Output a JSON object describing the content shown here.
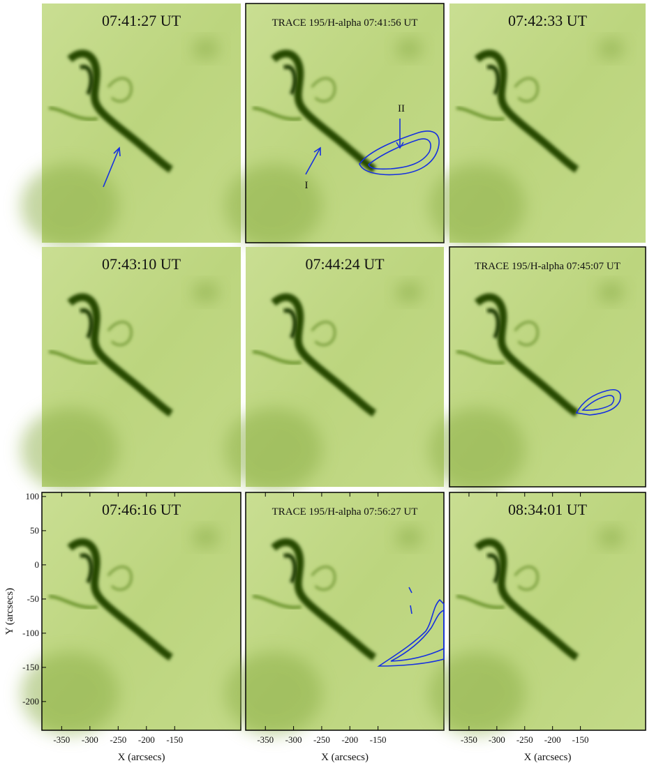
{
  "figure": {
    "panels": [
      {
        "title": "07:41:27 UT"
      },
      {
        "title": "TRACE 195/H-alpha 07:41:56 UT",
        "labels": [
          "II",
          "I"
        ]
      },
      {
        "title": "07:42:33 UT"
      },
      {
        "title": "07:43:10 UT"
      },
      {
        "title": "07:44:24 UT"
      },
      {
        "title": "TRACE 195/H-alpha 07:45:07 UT"
      },
      {
        "title": "07:46:16 UT"
      },
      {
        "title": "TRACE 195/H-alpha 07:56:27 UT"
      },
      {
        "title": "08:34:01 UT"
      }
    ],
    "x_axis": {
      "label": "X (arcsecs)",
      "lim": [
        -385,
        -33
      ],
      "ticks": [
        -350,
        -300,
        -250,
        -200,
        -150
      ]
    },
    "y_axis": {
      "label": "Y (arcsecs)",
      "lim": [
        106,
        -242
      ],
      "ticks": [
        100,
        50,
        0,
        -50,
        -100,
        -150,
        -200
      ]
    }
  }
}
